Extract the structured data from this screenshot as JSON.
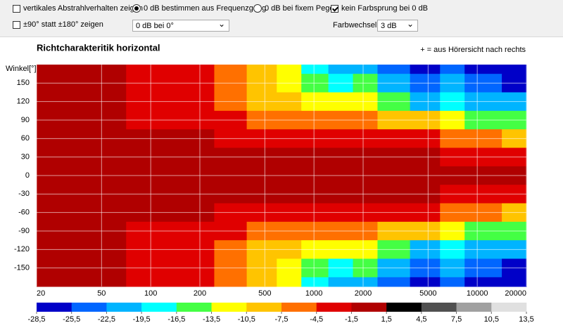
{
  "controls": [
    {
      "kind": "checkbox",
      "label": "vertikales Abstrahlverhalten zeigen",
      "checked": false
    },
    {
      "kind": "checkbox",
      "label": "±90° statt ±180° zeigen",
      "checked": false
    },
    {
      "kind": "radio",
      "label": "0 dB bestimmen aus Frequenzgang",
      "checked": true
    },
    {
      "kind": "select",
      "value": "0 dB bei 0°"
    },
    {
      "kind": "radio",
      "label": "0 dB bei fixem Pegel",
      "checked": false
    },
    {
      "kind": "checkbox",
      "label": "kein Farbsprung bei 0 dB",
      "checked": true
    },
    {
      "kind": "label",
      "label": "Farbwechsel  alle"
    },
    {
      "kind": "select",
      "value": "3 dB"
    }
  ],
  "chart_data": {
    "type": "heatmap",
    "title": "Richtcharakteritik horizontal",
    "note": "+ = aus Hörersicht nach rechts",
    "y_label": "Winkel[°]",
    "x_log": true,
    "x": [
      20,
      50,
      100,
      200,
      300,
      500,
      700,
      1000,
      1500,
      2000,
      3000,
      5000,
      7000,
      10000,
      20000
    ],
    "y": [
      180,
      150,
      120,
      90,
      60,
      30,
      0,
      -30,
      -60,
      -90,
      -120,
      -150,
      -180
    ],
    "z": [
      [
        0,
        0,
        -2,
        -3,
        -6,
        -9,
        -12,
        -18,
        -22,
        -20,
        -24,
        -26,
        -24,
        -26,
        -28
      ],
      [
        0,
        0,
        -2,
        -3,
        -6,
        -9,
        -11,
        -14,
        -18,
        -16,
        -20,
        -24,
        -22,
        -24,
        -26
      ],
      [
        0,
        0,
        -2,
        -3,
        -5,
        -8,
        -9,
        -11,
        -13,
        -12,
        -15,
        -20,
        -18,
        -20,
        -22
      ],
      [
        0,
        0,
        -2,
        -2,
        -3,
        -5,
        -6,
        -6,
        -7,
        -6,
        -8,
        -10,
        -12,
        -14,
        -16
      ],
      [
        0,
        0,
        0,
        -1,
        -2,
        -2,
        -2,
        -2,
        -2,
        -2,
        -3,
        -4,
        -5,
        -6,
        -8
      ],
      [
        0,
        0,
        0,
        0,
        0,
        0,
        0,
        0,
        1,
        0,
        -1,
        -1,
        -2,
        -2,
        -3
      ],
      [
        0,
        0,
        0,
        0,
        0,
        0,
        0,
        0,
        0,
        0,
        0,
        0,
        0,
        0,
        0
      ],
      [
        0,
        0,
        0,
        0,
        0,
        0,
        0,
        0,
        1,
        0,
        -1,
        -1,
        -2,
        -2,
        -3
      ],
      [
        0,
        0,
        0,
        -1,
        -2,
        -2,
        -2,
        -2,
        -2,
        -2,
        -3,
        -4,
        -5,
        -6,
        -8
      ],
      [
        0,
        0,
        -2,
        -2,
        -3,
        -5,
        -6,
        -6,
        -7,
        -6,
        -8,
        -10,
        -12,
        -14,
        -16
      ],
      [
        0,
        0,
        -2,
        -3,
        -5,
        -8,
        -9,
        -11,
        -13,
        -12,
        -15,
        -20,
        -18,
        -20,
        -22
      ],
      [
        0,
        0,
        -2,
        -3,
        -6,
        -9,
        -11,
        -14,
        -18,
        -16,
        -20,
        -24,
        -22,
        -24,
        -26
      ],
      [
        0,
        0,
        -2,
        -3,
        -6,
        -9,
        -12,
        -18,
        -22,
        -20,
        -24,
        -26,
        -24,
        -26,
        -28
      ]
    ],
    "xlim": [
      20,
      20000
    ],
    "xticks": [
      20,
      50,
      100,
      200,
      500,
      1000,
      2000,
      5000,
      10000,
      20000
    ],
    "ylim": [
      -180,
      180
    ],
    "yticks": [
      150,
      120,
      90,
      60,
      30,
      0,
      -30,
      -60,
      -90,
      -120,
      -150
    ],
    "grid": true,
    "colorbar": {
      "ticks": [
        {
          "value": -28.5,
          "label": "-28,5"
        },
        {
          "value": -25.5,
          "label": "-25,5"
        },
        {
          "value": -22.5,
          "label": "-22,5"
        },
        {
          "value": -19.5,
          "label": "-19,5"
        },
        {
          "value": -16.5,
          "label": "-16,5"
        },
        {
          "value": -13.5,
          "label": "-13,5"
        },
        {
          "value": -10.5,
          "label": "-10,5"
        },
        {
          "value": -7.5,
          "label": "-7,5"
        },
        {
          "value": -4.5,
          "label": "-4,5"
        },
        {
          "value": -1.5,
          "label": "-1,5"
        },
        {
          "value": 1.5,
          "label": "1,5"
        },
        {
          "value": 4.5,
          "label": "4,5"
        },
        {
          "value": 7.5,
          "label": "7,5"
        },
        {
          "value": 10.5,
          "label": "10,5"
        },
        {
          "value": 13.5,
          "label": "13,5"
        }
      ],
      "colors": [
        "#0000c8",
        "#0066ff",
        "#00b4ff",
        "#00ffff",
        "#44ff44",
        "#ffff00",
        "#ffc400",
        "#ff7000",
        "#e00000",
        "#b00000",
        "#000000",
        "#505050",
        "#a0a0a0",
        "#e0e0e0"
      ]
    }
  }
}
